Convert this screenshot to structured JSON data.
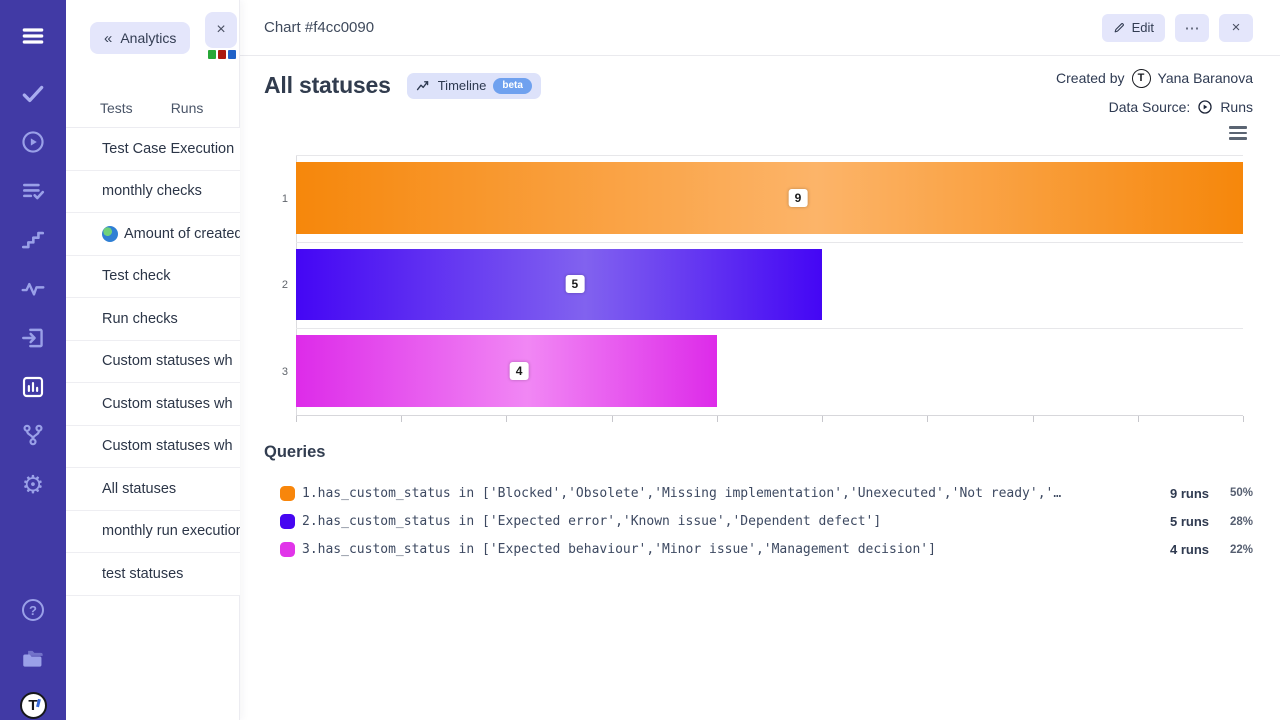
{
  "rail": {
    "active_item": "analytics",
    "icon_names": [
      "menu",
      "tests-check",
      "runs-play",
      "checklist",
      "milestones-stairs",
      "pulse-activity",
      "sign-in",
      "analytics-bar-chart",
      "branch-fork",
      "settings-gear",
      "help",
      "projects-folders",
      "account-logo"
    ]
  },
  "panel": {
    "back_button_label": "Analytics",
    "close_label": "×",
    "tabs": [
      {
        "label": "Tests"
      },
      {
        "label": "Runs"
      }
    ],
    "mini_chart_square_colors": [
      "#27a737",
      "#ab1a10",
      "#2062c8"
    ],
    "items": [
      {
        "label": "Test Case Execution"
      },
      {
        "label": "monthly checks"
      },
      {
        "label": "Amount of created",
        "icon": "globe"
      },
      {
        "label": "Test check"
      },
      {
        "label": "Run checks"
      },
      {
        "label": "Custom statuses wh"
      },
      {
        "label": "Custom statuses wh"
      },
      {
        "label": "Custom statuses wh"
      },
      {
        "label": "All statuses"
      },
      {
        "label": "monthly run execution"
      },
      {
        "label": "test statuses"
      }
    ]
  },
  "header": {
    "title": "Chart #f4cc0090",
    "edit_label": "Edit",
    "more_label": "⋯",
    "close_label": "×"
  },
  "chart_header": {
    "title": "All statuses",
    "timeline_label": "Timeline",
    "beta_label": "beta",
    "created_by_label": "Created by",
    "author": "Yana Baranova",
    "avatar_initial": "T",
    "data_source_label": "Data Source:",
    "data_source_value": "Runs"
  },
  "chart_data": {
    "type": "bar",
    "orientation": "horizontal",
    "categories": [
      "1",
      "2",
      "3"
    ],
    "values": [
      9,
      5,
      4
    ],
    "xlim": [
      0,
      9
    ],
    "x_tick_interval": 1,
    "grid": true,
    "legend": "none",
    "bar_gradients": [
      {
        "edge": "#f6870b",
        "mid": "#fcb469"
      },
      {
        "edge": "#4406f4",
        "mid": "#8162ef"
      },
      {
        "edge": "#dd2be9",
        "mid": "#f187f4"
      }
    ]
  },
  "queries": {
    "heading": "Queries",
    "rows": [
      {
        "swatch_color": "#f8860b",
        "query": "1.has_custom_status in ['Blocked','Obsolete','Missing implementation','Unexecuted','Not ready','…",
        "runs": "9 runs",
        "percent": "50%"
      },
      {
        "swatch_color": "#4606f1",
        "query": "2.has_custom_status in ['Expected error','Known issue','Dependent defect']",
        "runs": "5 runs",
        "percent": "28%"
      },
      {
        "swatch_color": "#e135e9",
        "query": "3.has_custom_status in ['Expected behaviour','Minor issue','Management decision']",
        "runs": "4 runs",
        "percent": "22%"
      }
    ]
  },
  "icons": {
    "back_chevrons": "«",
    "gear": "⚙",
    "help": "?"
  }
}
